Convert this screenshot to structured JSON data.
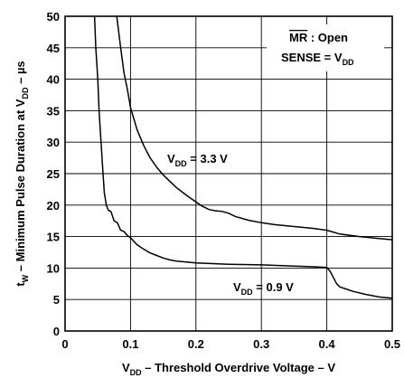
{
  "chart_data": {
    "type": "line",
    "xlabel": {
      "main": "V",
      "sub": "DD",
      "rest": " – Threshold Overdrive Voltage – V"
    },
    "ylabel": {
      "pre": "t",
      "sub1": "W",
      "mid": " – Minimum Pulse Duration at V",
      "sub2": "DD",
      "post": " – µs"
    },
    "xlim": [
      0,
      0.5
    ],
    "ylim": [
      0,
      50
    ],
    "x_ticks": [
      0,
      0.1,
      0.2,
      0.3,
      0.4,
      0.5
    ],
    "x_tick_labels": [
      "0",
      "0.1",
      "0.2",
      "0.3",
      "0.4",
      "0.5"
    ],
    "y_ticks": [
      0,
      5,
      10,
      15,
      20,
      25,
      30,
      35,
      40,
      45,
      50
    ],
    "y_tick_labels": [
      "0",
      "5",
      "10",
      "15",
      "20",
      "25",
      "30",
      "35",
      "40",
      "45",
      "50"
    ],
    "grid": true,
    "conditions": {
      "mr": "MR",
      "mr_rest": " : Open",
      "sense_pre": "SENSE = V",
      "sense_sub": "DD"
    },
    "series": [
      {
        "name": "V_DD = 3.3 V",
        "label": {
          "pre": "V",
          "sub": "DD",
          "post": " = 3.3 V"
        },
        "x": [
          0.079,
          0.085,
          0.09,
          0.095,
          0.1,
          0.11,
          0.12,
          0.13,
          0.14,
          0.15,
          0.16,
          0.17,
          0.18,
          0.19,
          0.2,
          0.21,
          0.22,
          0.23,
          0.24,
          0.25,
          0.26,
          0.28,
          0.3,
          0.32,
          0.35,
          0.38,
          0.4,
          0.42,
          0.45,
          0.48,
          0.5
        ],
        "y": [
          50,
          45,
          41,
          38.5,
          35.5,
          32,
          29.5,
          27.5,
          26,
          24.8,
          23.8,
          22.8,
          22,
          21.2,
          20.5,
          19.8,
          19.3,
          19.1,
          19,
          18.7,
          18.2,
          17.6,
          17.2,
          16.9,
          16.6,
          16.3,
          16.0,
          15.4,
          15.0,
          14.7,
          14.5
        ]
      },
      {
        "name": "V_DD = 0.9 V",
        "label": {
          "pre": "V",
          "sub": "DD",
          "post": " = 0.9 V"
        },
        "x": [
          0.045,
          0.047,
          0.05,
          0.052,
          0.055,
          0.058,
          0.06,
          0.063,
          0.066,
          0.07,
          0.075,
          0.08,
          0.085,
          0.09,
          0.095,
          0.1,
          0.11,
          0.12,
          0.13,
          0.14,
          0.15,
          0.16,
          0.17,
          0.18,
          0.2,
          0.25,
          0.3,
          0.35,
          0.38,
          0.4,
          0.405,
          0.41,
          0.415,
          0.42,
          0.44,
          0.46,
          0.48,
          0.5
        ],
        "y": [
          50,
          45,
          40,
          35,
          30,
          25,
          22,
          20,
          19.2,
          19,
          17.5,
          17.2,
          16,
          15.8,
          15.2,
          14.8,
          13.7,
          13,
          12.4,
          12,
          11.6,
          11.3,
          11.1,
          11,
          10.8,
          10.6,
          10.5,
          10.3,
          10.2,
          10.1,
          9.5,
          8.5,
          7.5,
          7.0,
          6.3,
          5.8,
          5.4,
          5.2
        ]
      }
    ]
  }
}
